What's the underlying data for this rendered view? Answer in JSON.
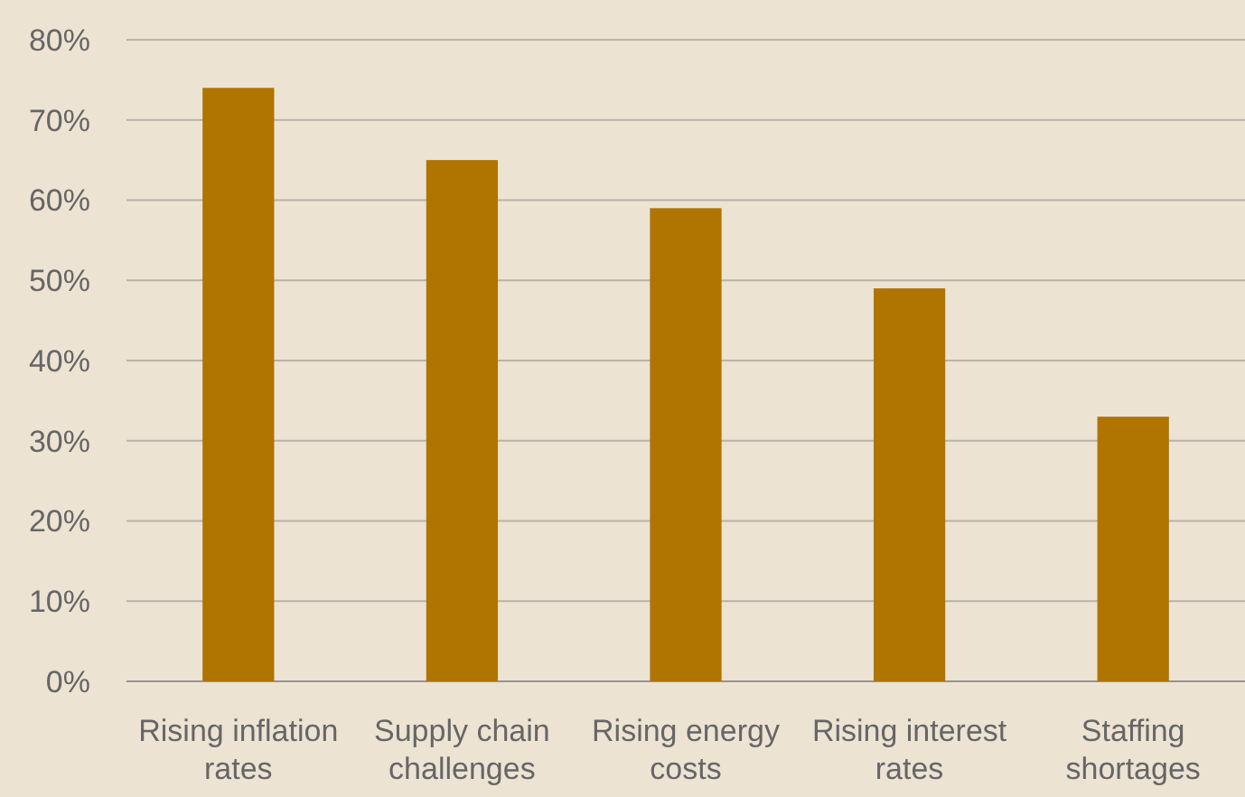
{
  "chart_data": {
    "type": "bar",
    "categories": [
      "Rising inflation rates",
      "Supply chain challenges",
      "Rising energy costs",
      "Rising interest rates",
      "Staffing shortages"
    ],
    "values": [
      74,
      65,
      59,
      49,
      33
    ],
    "color": "#b07400",
    "ylim": [
      0,
      80
    ],
    "yticks": [
      {
        "value": 0,
        "label": "0%"
      },
      {
        "value": 10,
        "label": "10%"
      },
      {
        "value": 20,
        "label": "20%"
      },
      {
        "value": 30,
        "label": "30%"
      },
      {
        "value": 40,
        "label": "40%"
      },
      {
        "value": 50,
        "label": "50%"
      },
      {
        "value": 60,
        "label": "60%"
      },
      {
        "value": 70,
        "label": "70%"
      },
      {
        "value": 80,
        "label": "80%"
      }
    ],
    "grid": "y"
  }
}
